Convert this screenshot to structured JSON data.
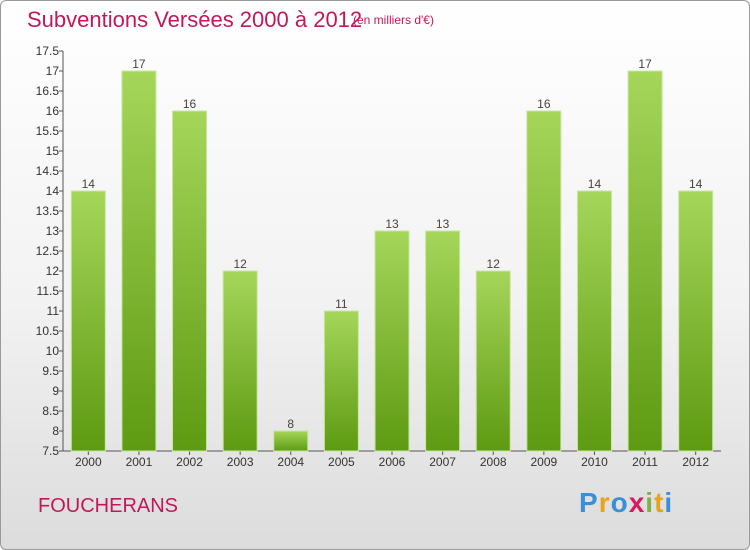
{
  "header": {
    "title": "Subventions Versées 2000 à 2012",
    "subtitle": "(en milliers d'€)"
  },
  "commune": "FOUCHERANS",
  "brand": {
    "letters": [
      "P",
      "r",
      "o",
      "x",
      "i",
      "t",
      "i"
    ],
    "colors": [
      "#3a8fd9",
      "#e8a317",
      "#3a8fd9",
      "#d81b60",
      "#7cb342",
      "#e8a317",
      "#3a8fd9"
    ]
  },
  "chart_data": {
    "type": "bar",
    "title": "Subventions Versées 2000 à 2012",
    "subtitle": "(en milliers d'€)",
    "categories": [
      "2000",
      "2001",
      "2002",
      "2003",
      "2004",
      "2005",
      "2006",
      "2007",
      "2008",
      "2009",
      "2010",
      "2011",
      "2012"
    ],
    "values": [
      14,
      17,
      16,
      12,
      8,
      11,
      13,
      13,
      12,
      16,
      14,
      17,
      14
    ],
    "ylim": [
      7.5,
      17.5
    ],
    "yticks": [
      "7.5",
      "8",
      "8.5",
      "9",
      "9.5",
      "10",
      "10.5",
      "11",
      "11.5",
      "12",
      "12.5",
      "13",
      "13.5",
      "14",
      "14.5",
      "15",
      "15.5",
      "16",
      "16.5",
      "17",
      "17.5"
    ],
    "grid": false,
    "bar_color": "#7cb342"
  }
}
